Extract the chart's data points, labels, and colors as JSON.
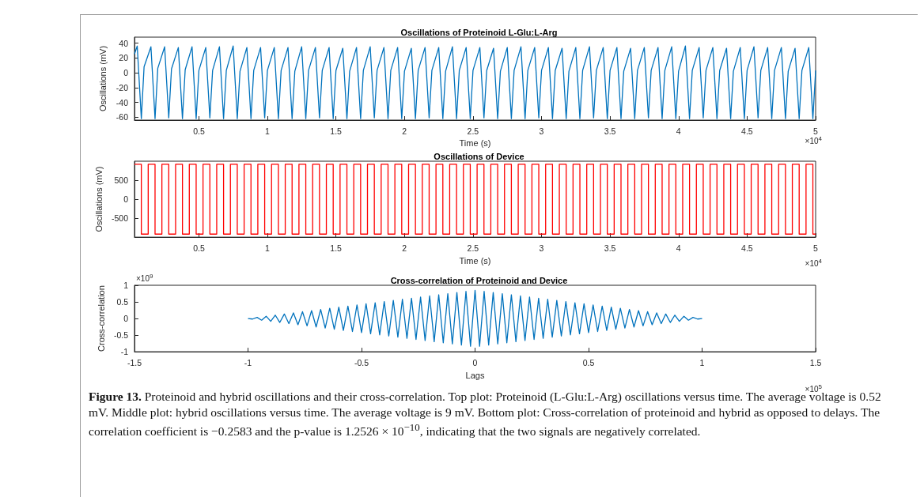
{
  "chart_data": [
    {
      "type": "line",
      "title": "Oscillations of Proteinoid L-Glu:L-Arg",
      "xlabel": "Time (s)",
      "ylabel": "Oscillations (mV)",
      "annotations": [
        "×10$^{4}$"
      ],
      "color": "#0072bd",
      "xlim": [
        0.03,
        5
      ],
      "xticks": [
        0.5,
        1,
        1.5,
        2,
        2.5,
        3,
        3.5,
        4,
        4.5,
        5
      ],
      "ylim": [
        -64,
        48
      ],
      "yticks": [
        -60,
        -40,
        -20,
        0,
        20,
        40
      ],
      "x": [
        0.03,
        0.05,
        0.08,
        0.1,
        0.15,
        0.18,
        0.2,
        0.25,
        0.28,
        0.3,
        0.35,
        0.38,
        0.4,
        0.45,
        0.48,
        0.5,
        0.55,
        0.58,
        0.6,
        0.65,
        0.68,
        0.7,
        0.75,
        0.78,
        0.8,
        0.85,
        0.88,
        0.9,
        0.95,
        0.98,
        1,
        1.05,
        1.08,
        1.1,
        1.15,
        1.18,
        1.2,
        1.25,
        1.28,
        1.3,
        1.35,
        1.38,
        1.4,
        1.45,
        1.48,
        1.5,
        1.55,
        1.58,
        1.6,
        1.65,
        1.68,
        1.7,
        1.75,
        1.78,
        1.8,
        1.85,
        1.88,
        1.9,
        1.95,
        1.98,
        2,
        2.05,
        2.08,
        2.1,
        2.15,
        2.18,
        2.2,
        2.25,
        2.28,
        2.3,
        2.35,
        2.38,
        2.4,
        2.45,
        2.48,
        2.5,
        2.55,
        2.58,
        2.6,
        2.65,
        2.68,
        2.7,
        2.75,
        2.78,
        2.8,
        2.85,
        2.88,
        2.9,
        2.95,
        2.98,
        3,
        3.05,
        3.08,
        3.1,
        3.15,
        3.18,
        3.2,
        3.25,
        3.28,
        3.3,
        3.35,
        3.38,
        3.4,
        3.45,
        3.48,
        3.5,
        3.55,
        3.58,
        3.6,
        3.65,
        3.68,
        3.7,
        3.75,
        3.78,
        3.8,
        3.85,
        3.88,
        3.9,
        3.95,
        3.98,
        4,
        4.05,
        4.08,
        4.1,
        4.15,
        4.18,
        4.2,
        4.25,
        4.28,
        4.3,
        4.35,
        4.38,
        4.4,
        4.45,
        4.48,
        4.5,
        4.55,
        4.58,
        4.6,
        4.65,
        4.68,
        4.7,
        4.75,
        4.78,
        4.8,
        4.85,
        4.88,
        4.9,
        4.95,
        4.98,
        5
      ],
      "values": [
        25,
        36,
        -62,
        8,
        35,
        -62,
        6,
        35,
        -61,
        5,
        34,
        -62,
        4,
        35,
        -62,
        3,
        34,
        -61,
        3,
        35,
        -62,
        3,
        36,
        -62,
        2,
        34,
        -62,
        3,
        34,
        -61,
        3,
        34,
        -62,
        3,
        34,
        -62,
        2,
        35,
        -62,
        3,
        34,
        -61,
        3,
        34,
        -62,
        3,
        33,
        -62,
        2,
        34,
        -62,
        3,
        35,
        -61,
        3,
        34,
        -62,
        3,
        34,
        -62,
        2,
        33,
        -62,
        3,
        34,
        -61,
        3,
        34,
        -62,
        2,
        35,
        -62,
        3,
        34,
        -62,
        3,
        34,
        -61,
        3,
        33,
        -62,
        2,
        34,
        -62,
        3,
        35,
        -62,
        3,
        34,
        -61,
        3,
        34,
        -62,
        3,
        33,
        -62,
        2,
        34,
        -62,
        3,
        35,
        -61,
        3,
        34,
        -62,
        3,
        34,
        -62,
        2,
        33,
        -62,
        3,
        34,
        -61,
        3,
        34,
        -62,
        3,
        35,
        -62,
        2,
        36,
        -62,
        3,
        34,
        -61,
        3,
        34,
        -62,
        3,
        33,
        -62,
        2,
        34,
        -62,
        3,
        35,
        -61,
        3,
        34,
        -62,
        3,
        34,
        -62,
        2,
        33,
        -62,
        3,
        34,
        -62,
        3
      ]
    },
    {
      "type": "step",
      "title": "Oscillations of Device",
      "xlabel": "Time (s)",
      "ylabel": "Oscillations (mV)",
      "annotations": [
        "×10$^{4}$"
      ],
      "color": "#ff0000",
      "xlim": [
        0.03,
        5
      ],
      "xticks": [
        0.5,
        1,
        1.5,
        2,
        2.5,
        3,
        3.5,
        4,
        4.5,
        5
      ],
      "ylim": [
        -1000,
        1000
      ],
      "yticks": [
        -500,
        0,
        500
      ],
      "x": [
        0.03,
        0.08,
        0.13,
        0.18,
        0.23,
        0.28,
        0.33,
        0.38,
        0.43,
        0.48,
        0.53,
        0.58,
        0.63,
        0.68,
        0.73,
        0.78,
        0.83,
        0.88,
        0.93,
        0.98,
        1.03,
        1.08,
        1.13,
        1.18,
        1.23,
        1.28,
        1.33,
        1.38,
        1.43,
        1.48,
        1.53,
        1.58,
        1.63,
        1.68,
        1.73,
        1.78,
        1.83,
        1.88,
        1.93,
        1.98,
        2.03,
        2.08,
        2.13,
        2.18,
        2.23,
        2.28,
        2.33,
        2.38,
        2.43,
        2.48,
        2.53,
        2.58,
        2.63,
        2.68,
        2.73,
        2.78,
        2.83,
        2.88,
        2.93,
        2.98,
        3.03,
        3.08,
        3.13,
        3.18,
        3.23,
        3.28,
        3.33,
        3.38,
        3.43,
        3.48,
        3.53,
        3.58,
        3.63,
        3.68,
        3.73,
        3.78,
        3.83,
        3.88,
        3.93,
        3.98,
        4.03,
        4.08,
        4.13,
        4.18,
        4.23,
        4.28,
        4.33,
        4.38,
        4.43,
        4.48,
        4.53,
        4.58,
        4.63,
        4.68,
        4.73,
        4.78,
        4.83,
        4.88,
        4.93,
        4.98,
        5
      ],
      "values": [
        920,
        -920,
        920,
        -920,
        920,
        -920,
        920,
        -920,
        920,
        -920,
        920,
        -920,
        920,
        -920,
        920,
        -920,
        920,
        -920,
        920,
        -920,
        920,
        -920,
        920,
        -920,
        920,
        -920,
        920,
        -920,
        920,
        -920,
        920,
        -920,
        920,
        -920,
        920,
        -920,
        920,
        -920,
        920,
        -920,
        920,
        -920,
        920,
        -920,
        920,
        -920,
        920,
        -920,
        920,
        -920,
        920,
        -920,
        920,
        -920,
        920,
        -920,
        920,
        -920,
        920,
        -920,
        920,
        -920,
        920,
        -920,
        920,
        -920,
        920,
        -920,
        920,
        -920,
        920,
        -920,
        920,
        -920,
        920,
        -920,
        920,
        -920,
        920,
        -920,
        920,
        -920,
        920,
        -920,
        920,
        -920,
        920,
        -920,
        920,
        -920,
        920,
        -920,
        920,
        -920,
        920,
        -920,
        920,
        -920,
        920,
        -920,
        -920
      ]
    },
    {
      "type": "line",
      "title": "Cross-correlation of Proteinoid and Device",
      "xlabel": "Lags",
      "ylabel": "Cross-correlation",
      "annotations": [
        "×10$^{5}$",
        "×10$^{9}$"
      ],
      "color": "#0072bd",
      "xlim": [
        -1.5,
        1.5
      ],
      "xticks": [
        -1.5,
        -1,
        -0.5,
        0,
        0.5,
        1,
        1.5
      ],
      "ylim": [
        -1,
        1
      ],
      "yticks": [
        -1,
        -0.5,
        0,
        0.5,
        1
      ],
      "x": [
        -1,
        -0.98,
        -0.96,
        -0.94,
        -0.92,
        -0.9,
        -0.88,
        -0.86,
        -0.84,
        -0.82,
        -0.8,
        -0.78,
        -0.76,
        -0.74,
        -0.72,
        -0.7,
        -0.68,
        -0.66,
        -0.64,
        -0.62,
        -0.6,
        -0.58,
        -0.56,
        -0.54,
        -0.52,
        -0.5,
        -0.48,
        -0.46,
        -0.44,
        -0.42,
        -0.4,
        -0.38,
        -0.36,
        -0.34,
        -0.32,
        -0.3,
        -0.28,
        -0.26,
        -0.24,
        -0.22,
        -0.2,
        -0.18,
        -0.16,
        -0.14,
        -0.12,
        -0.1,
        -0.08,
        -0.06,
        -0.04,
        -0.02,
        0,
        0.02,
        0.04,
        0.06,
        0.08,
        0.1,
        0.12,
        0.14,
        0.16,
        0.18,
        0.2,
        0.22,
        0.24,
        0.26,
        0.28,
        0.3,
        0.32,
        0.34,
        0.36,
        0.38,
        0.4,
        0.42,
        0.44,
        0.46,
        0.48,
        0.5,
        0.52,
        0.54,
        0.56,
        0.58,
        0.6,
        0.62,
        0.64,
        0.66,
        0.68,
        0.7,
        0.72,
        0.74,
        0.76,
        0.78,
        0.8,
        0.82,
        0.84,
        0.86,
        0.88,
        0.9,
        0.92,
        0.94,
        0.96,
        0.98,
        1
      ],
      "values": [
        0,
        -0.017,
        0.034,
        -0.051,
        0.068,
        -0.085,
        0.102,
        -0.119,
        0.136,
        -0.153,
        0.17,
        -0.187,
        0.204,
        -0.221,
        0.238,
        -0.255,
        0.272,
        -0.289,
        0.306,
        -0.323,
        0.34,
        -0.357,
        0.374,
        -0.391,
        0.408,
        -0.425,
        0.442,
        -0.459,
        0.476,
        -0.493,
        0.51,
        -0.527,
        0.544,
        -0.561,
        0.578,
        -0.595,
        0.612,
        -0.629,
        0.646,
        -0.663,
        0.68,
        -0.697,
        0.714,
        -0.731,
        0.748,
        -0.765,
        0.782,
        -0.799,
        0.816,
        -0.833,
        0.85,
        -0.833,
        0.816,
        -0.799,
        0.782,
        -0.765,
        0.748,
        -0.731,
        0.714,
        -0.697,
        0.68,
        -0.663,
        0.646,
        -0.629,
        0.612,
        -0.595,
        0.578,
        -0.561,
        0.544,
        -0.527,
        0.51,
        -0.493,
        0.476,
        -0.459,
        0.442,
        -0.425,
        0.408,
        -0.391,
        0.374,
        -0.357,
        0.34,
        -0.323,
        0.306,
        -0.289,
        0.272,
        -0.255,
        0.238,
        -0.221,
        0.204,
        -0.187,
        0.17,
        -0.153,
        0.136,
        -0.119,
        0.102,
        -0.085,
        0.068,
        -0.051,
        0.034,
        -0.017,
        0
      ]
    },
    {
      "type": "other",
      "annotations": [
        "Figure 13.",
        "Proteinoid and hybrid oscillations and their cross-correlation. Top plot: Proteinoid (L-Glu:L-Arg) oscillations versus time. The average voltage is 0.52 mV. Middle plot: hybrid oscillations versus time. The average voltage is 9 mV. Bottom plot: Cross-correlation of proteinoid and hybrid as opposed to delays. The correlation coefficient is −0.2583 and the p-value is 1.2526 × 10$^{−10}$, indicating that the two signals are negatively correlated."
      ]
    }
  ]
}
